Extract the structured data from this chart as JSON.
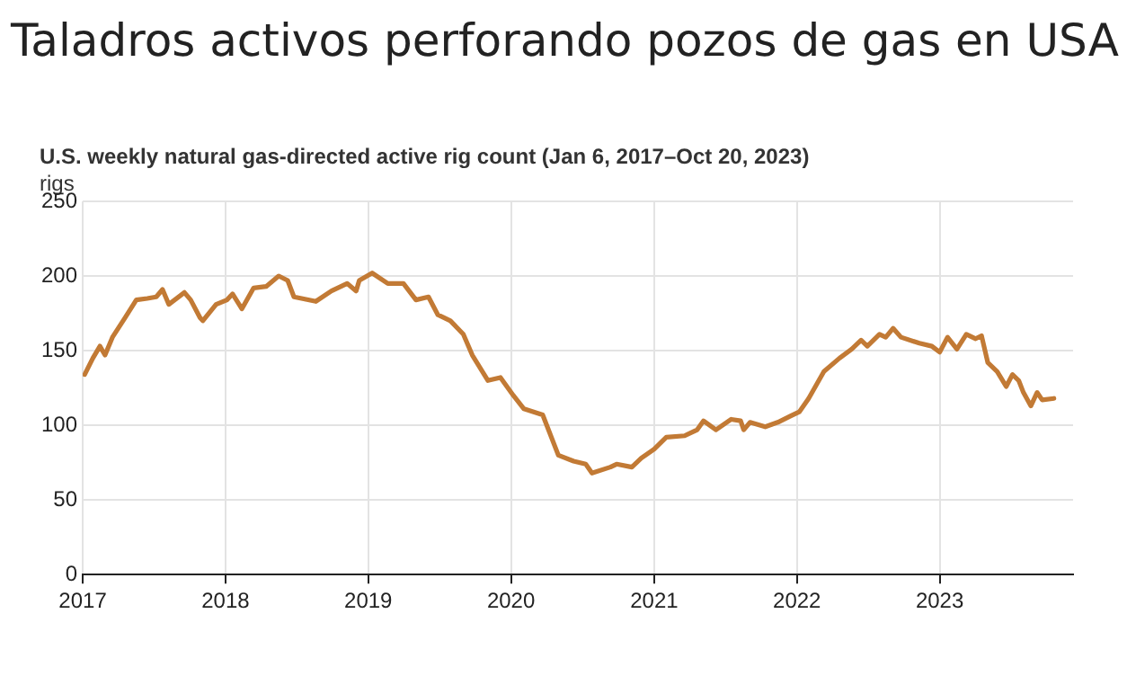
{
  "chart_data": {
    "type": "line",
    "title": "Taladros activos perforando pozos de gas en USA",
    "subtitle": "U.S. weekly natural gas-directed active rig count (Jan 6, 2017–Oct 20, 2023)",
    "ylabel": "rigs",
    "x": [
      "2017-01-06",
      "2017-01-27",
      "2017-02-14",
      "2017-02-27",
      "2017-03-18",
      "2017-04-19",
      "2017-05-18",
      "2017-06-15",
      "2017-07-08",
      "2017-07-24",
      "2017-08-09",
      "2017-09-18",
      "2017-10-04",
      "2017-10-28",
      "2017-11-04",
      "2017-12-08",
      "2018-01-05",
      "2018-01-19",
      "2018-02-12",
      "2018-03-14",
      "2018-04-15",
      "2018-05-17",
      "2018-06-09",
      "2018-06-25",
      "2018-08-20",
      "2018-09-29",
      "2018-11-08",
      "2018-12-01",
      "2018-12-09",
      "2019-01-11",
      "2019-02-20",
      "2019-04-01",
      "2019-05-03",
      "2019-06-04",
      "2019-06-28",
      "2019-07-30",
      "2019-09-01",
      "2019-09-24",
      "2019-11-03",
      "2019-12-05",
      "2020-01-07",
      "2020-02-03",
      "2020-03-22",
      "2020-05-01",
      "2020-06-09",
      "2020-07-10",
      "2020-07-26",
      "2020-09-11",
      "2020-09-27",
      "2020-11-05",
      "2020-11-29",
      "2021-01-01",
      "2021-02-01",
      "2021-03-20",
      "2021-04-21",
      "2021-05-07",
      "2021-06-08",
      "2021-07-17",
      "2021-08-10",
      "2021-08-18",
      "2021-09-03",
      "2021-10-12",
      "2021-11-13",
      "2021-12-14",
      "2022-01-07",
      "2022-01-31",
      "2022-03-11",
      "2022-04-20",
      "2022-05-21",
      "2022-06-14",
      "2022-06-30",
      "2022-07-31",
      "2022-08-16",
      "2022-09-04",
      "2022-09-24",
      "2022-11-10",
      "2022-12-12",
      "2023-01-01",
      "2023-01-21",
      "2023-02-14",
      "2023-03-10",
      "2023-04-03",
      "2023-04-18",
      "2023-05-04",
      "2023-05-28",
      "2023-06-20",
      "2023-07-06",
      "2023-07-22",
      "2023-08-03",
      "2023-08-22",
      "2023-09-07",
      "2023-09-20",
      "2023-10-20"
    ],
    "series": [
      {
        "color": "#c27a35",
        "values": [
          134,
          145,
          153,
          147,
          159,
          172,
          184,
          185,
          186,
          191,
          181,
          189,
          184,
          172,
          170,
          181,
          184,
          188,
          178,
          192,
          193,
          200,
          197,
          186,
          183,
          190,
          195,
          190,
          197,
          202,
          195,
          195,
          184,
          186,
          174,
          170,
          161,
          147,
          130,
          132,
          120,
          111,
          107,
          80,
          76,
          74,
          68,
          72,
          74,
          72,
          78,
          84,
          92,
          93,
          97,
          103,
          97,
          104,
          103,
          97,
          102,
          99,
          102,
          106,
          109,
          118,
          136,
          145,
          151,
          157,
          153,
          161,
          159,
          165,
          159,
          155,
          153,
          149,
          159,
          151,
          161,
          158,
          160,
          142,
          136,
          126,
          134,
          130,
          122,
          113,
          122,
          117,
          118
        ]
      }
    ],
    "xlim": [
      "2017-01-01",
      "2023-12-08"
    ],
    "xticks": [
      {
        "value": "2017-01-01",
        "label": "2017"
      },
      {
        "value": "2018-01-01",
        "label": "2018"
      },
      {
        "value": "2019-01-01",
        "label": "2019"
      },
      {
        "value": "2020-01-01",
        "label": "2020"
      },
      {
        "value": "2021-01-01",
        "label": "2021"
      },
      {
        "value": "2022-01-01",
        "label": "2022"
      },
      {
        "value": "2023-01-01",
        "label": "2023"
      }
    ],
    "ylim": [
      0,
      250
    ],
    "yticks": [
      0,
      50,
      100,
      150,
      200,
      250
    ],
    "grid": true,
    "legend": false,
    "marker": "none",
    "line_style": "solid"
  }
}
